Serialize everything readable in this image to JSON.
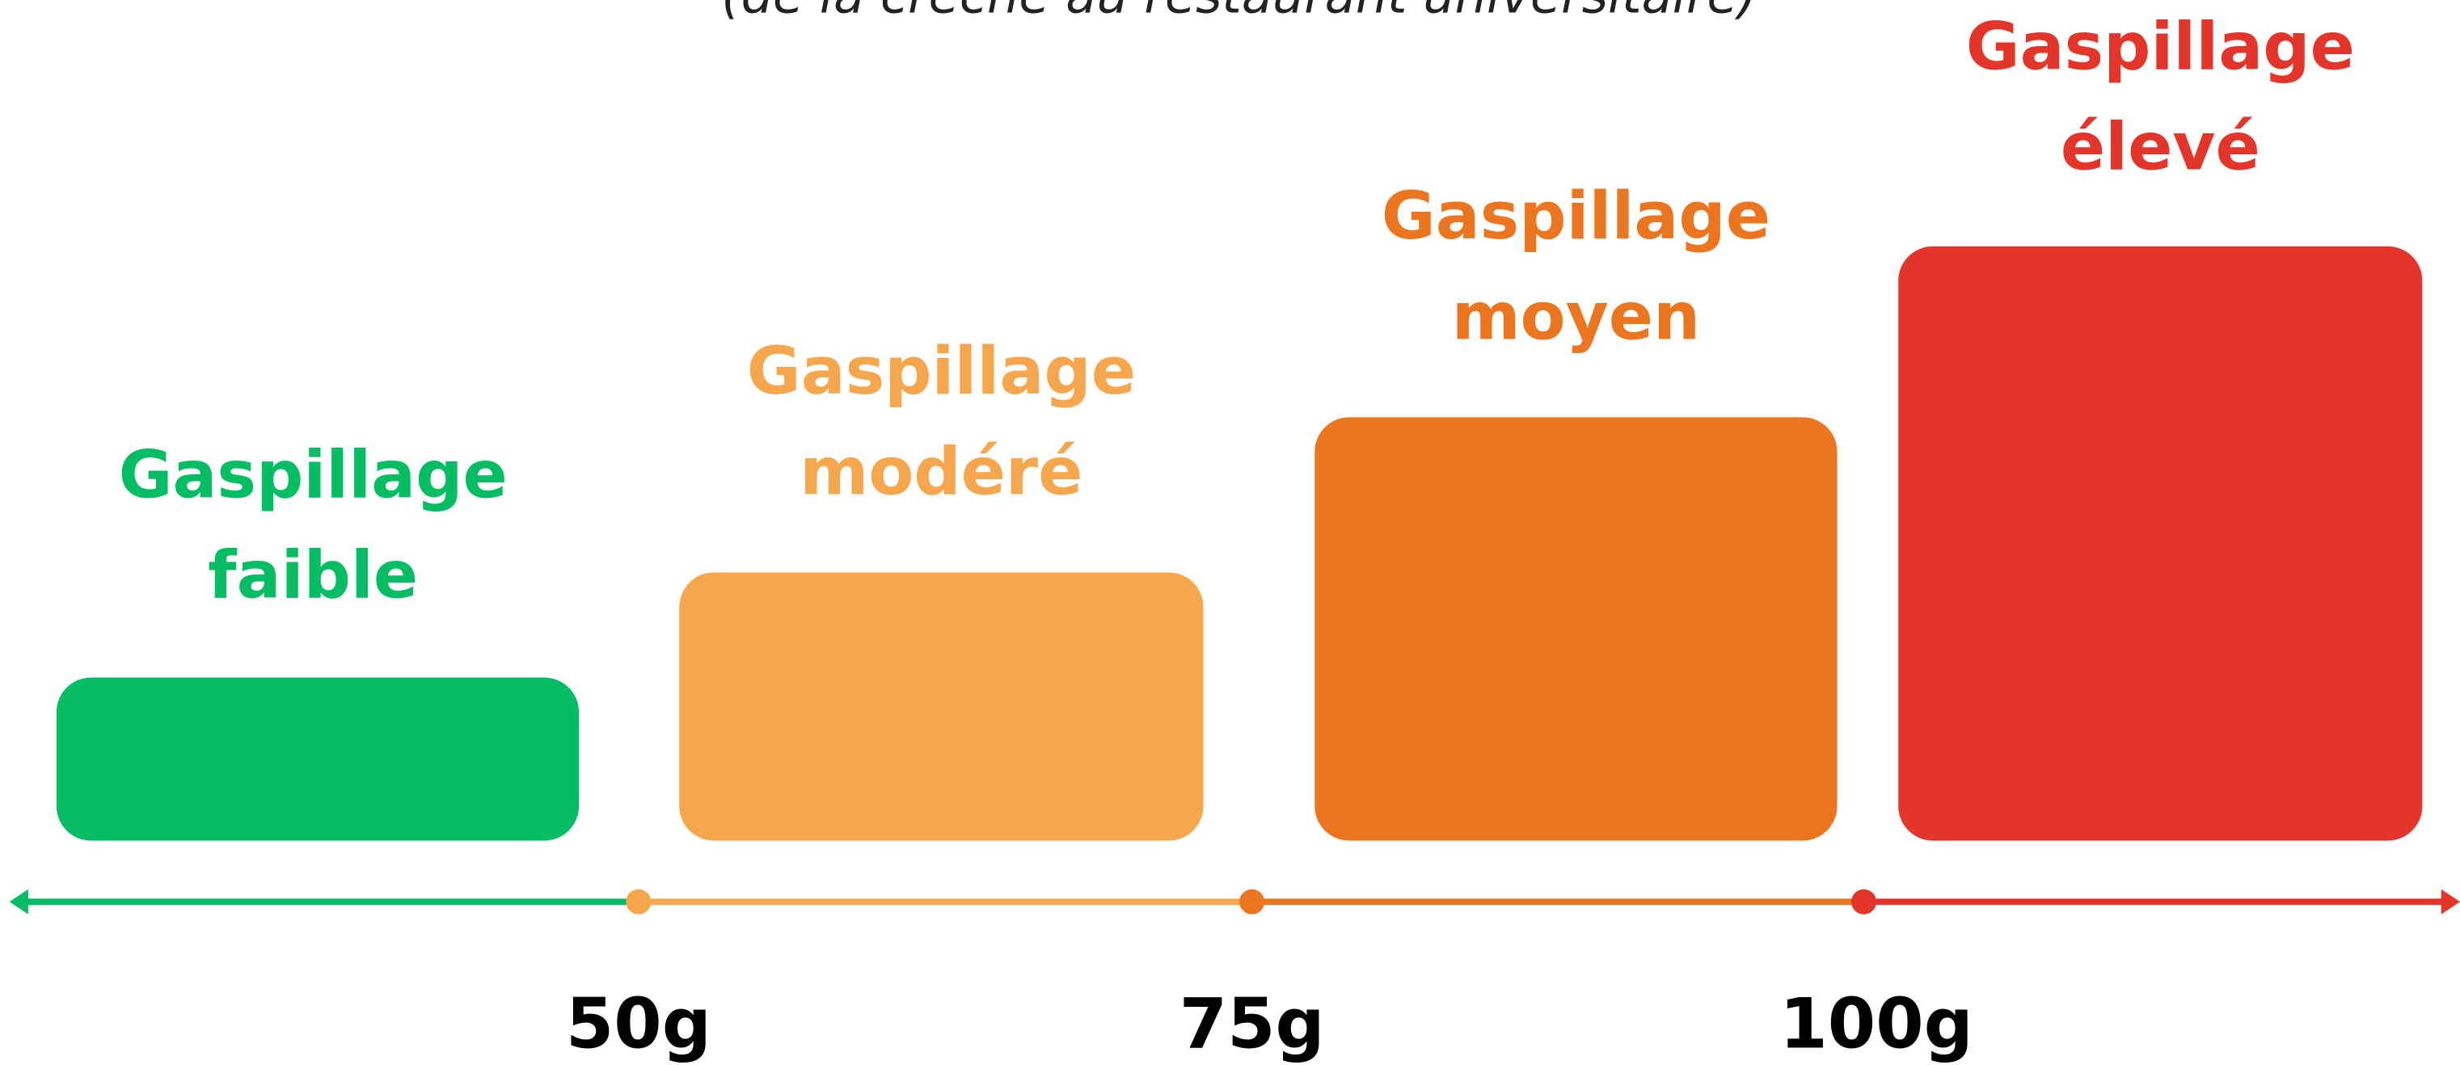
{
  "subtitle": "(de la crèche au restaurant universitaire)",
  "levels": [
    {
      "lines": [
        "Gaspillage",
        "faible"
      ],
      "color": "#05bd62"
    },
    {
      "lines": [
        "Gaspillage",
        "modéré"
      ],
      "color": "#f6a74d"
    },
    {
      "lines": [
        "Gaspillage",
        "moyen"
      ],
      "color": "#ec751f"
    },
    {
      "lines": [
        "Gaspillage",
        "élevé"
      ],
      "color": "#e4352b"
    }
  ],
  "thresholds": [
    "50g",
    "75g",
    "100g"
  ]
}
